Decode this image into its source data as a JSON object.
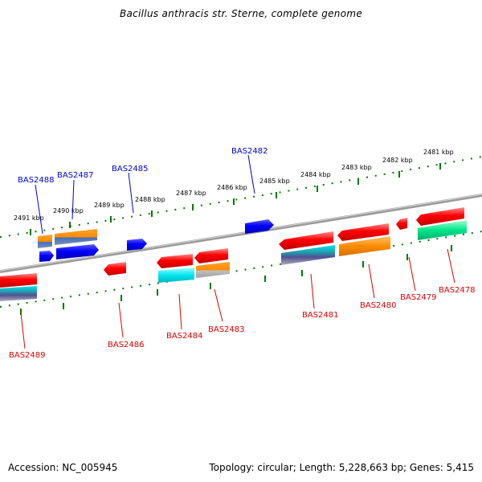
{
  "title": "Bacillus anthracis str. Sterne, complete genome",
  "accession_text": "Accession: NC_005945",
  "summary_text": "Topology: circular; Length: 5,228,663 bp; Genes: 5,415",
  "colors": {
    "backbone": "#8a8a8a",
    "tick_ring": "#008000",
    "forward_label": "#0000cc",
    "reverse_label": "#dd0000",
    "feature_blue": "#0000ff",
    "feature_orange": "#ff8c00",
    "feature_red": "#ff0000",
    "feature_cyan": "#00e5ee",
    "feature_teal": "#00e58a"
  },
  "kbp_ticks": [
    {
      "label": "2491 kbp"
    },
    {
      "label": "2490 kbp"
    },
    {
      "label": "2489 kbp"
    },
    {
      "label": "2488 kbp"
    },
    {
      "label": "2487 kbp"
    },
    {
      "label": "2486 kbp"
    },
    {
      "label": "2485 kbp"
    },
    {
      "label": "2484 kbp"
    },
    {
      "label": "2483 kbp"
    },
    {
      "label": "2482 kbp"
    },
    {
      "label": "2481 kbp"
    }
  ],
  "forward_genes": [
    {
      "label": "BAS2488"
    },
    {
      "label": "BAS2487"
    },
    {
      "label": "BAS2485"
    },
    {
      "label": "BAS2482"
    }
  ],
  "reverse_genes": [
    {
      "label": "BAS2489"
    },
    {
      "label": "BAS2486"
    },
    {
      "label": "BAS2484"
    },
    {
      "label": "BAS2483"
    },
    {
      "label": "BAS2481"
    },
    {
      "label": "BAS2480"
    },
    {
      "label": "BAS2479"
    },
    {
      "label": "BAS2478"
    }
  ]
}
